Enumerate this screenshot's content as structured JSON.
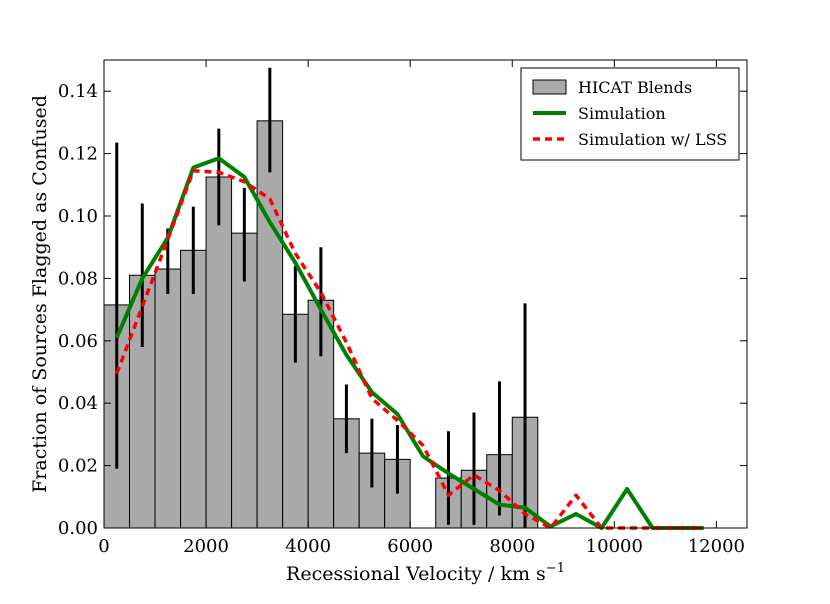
{
  "chart_data": {
    "type": "bar",
    "xlabel": "Recessional Velocity / km s",
    "xlabel_sup": "−1",
    "ylabel": "Fraction of Sources Flagged as Confused",
    "xlim": [
      0,
      12600
    ],
    "ylim": [
      0,
      0.15
    ],
    "x_ticks": [
      0,
      2000,
      4000,
      6000,
      8000,
      10000,
      12000
    ],
    "y_ticks": [
      0.0,
      0.02,
      0.04,
      0.06,
      0.08,
      0.1,
      0.12,
      0.14
    ],
    "x_tick_labels": [
      "0",
      "2000",
      "4000",
      "6000",
      "8000",
      "10000",
      "12000"
    ],
    "y_tick_labels": [
      "0.00",
      "0.02",
      "0.04",
      "0.06",
      "0.08",
      "0.10",
      "0.12",
      "0.14"
    ],
    "grid": false,
    "legend_position": "top-right",
    "bin_width": 500,
    "series": [
      {
        "name": "HICAT Blends",
        "kind": "bar",
        "color": "#aaaaaa",
        "x": [
          250,
          750,
          1250,
          1750,
          2250,
          2750,
          3250,
          3750,
          4250,
          4750,
          5250,
          5750,
          6250,
          6750,
          7250,
          7750,
          8250
        ],
        "values": [
          0.0715,
          0.081,
          0.083,
          0.089,
          0.1125,
          0.0945,
          0.1305,
          0.0685,
          0.073,
          0.035,
          0.024,
          0.022,
          0,
          0.016,
          0.0185,
          0.0235,
          0.0355
        ],
        "err_low": [
          0.019,
          0.058,
          0.075,
          0.075,
          0.097,
          0.079,
          0.114,
          0.053,
          0.055,
          0.024,
          0.013,
          0.011,
          null,
          0.001,
          0.001,
          0.004,
          0.0
        ],
        "err_high": [
          0.1235,
          0.104,
          0.096,
          0.103,
          0.128,
          0.109,
          0.1475,
          0.084,
          0.09,
          0.046,
          0.035,
          0.033,
          null,
          0.031,
          0.037,
          0.047,
          0.072
        ]
      },
      {
        "name": "Simulation",
        "kind": "line",
        "color": "#008000",
        "x": [
          250,
          750,
          1250,
          1750,
          2250,
          2750,
          3250,
          3750,
          4250,
          4750,
          5250,
          5750,
          6250,
          6750,
          7250,
          7750,
          8250,
          8750,
          9250,
          9750,
          10250,
          10750,
          11250,
          11750
        ],
        "values": [
          0.061,
          0.08,
          0.093,
          0.1155,
          0.1185,
          0.1125,
          0.098,
          0.085,
          0.07,
          0.0555,
          0.0435,
          0.0365,
          0.023,
          0.0175,
          0.0125,
          0.0075,
          0.0065,
          0.0005,
          0.0045,
          0.0,
          0.0125,
          0.0,
          0.0,
          0.0
        ]
      },
      {
        "name": "Simulation w/ LSS",
        "kind": "dashed-line",
        "color": "#ff0000",
        "x": [
          250,
          750,
          1250,
          1750,
          2250,
          2750,
          3250,
          3750,
          4250,
          4750,
          5250,
          5750,
          6250,
          6750,
          7250,
          7750,
          8250,
          8750,
          9250,
          9750,
          10250,
          10750,
          11250,
          11750
        ],
        "values": [
          0.0495,
          0.071,
          0.0925,
          0.1145,
          0.114,
          0.111,
          0.1055,
          0.088,
          0.0755,
          0.0595,
          0.0415,
          0.0345,
          0.0265,
          0.0105,
          0.017,
          0.012,
          0.0045,
          0.0,
          0.0105,
          0.0,
          0.0,
          0.0,
          0.0,
          0.0
        ]
      }
    ]
  }
}
